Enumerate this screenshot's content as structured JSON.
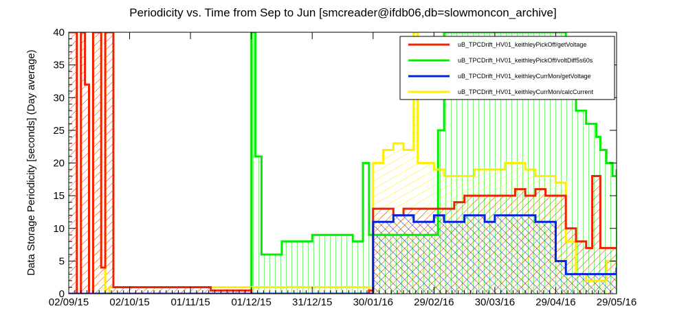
{
  "chart_data": {
    "type": "area",
    "title": "Periodicity vs. Time from Sep to Jun [smcreader@ifdb06,db=slowmoncon_archive]",
    "ylabel": "Data Storage Periodicity [seconds] (Day average)",
    "xlabel": "",
    "ylim": [
      0,
      40
    ],
    "xlim_days": [
      0,
      270
    ],
    "yticks": [
      0,
      5,
      10,
      15,
      20,
      25,
      30,
      35,
      40
    ],
    "xticks": [
      {
        "label": "02/09/15",
        "day": 0
      },
      {
        "label": "02/10/15",
        "day": 30
      },
      {
        "label": "01/11/15",
        "day": 60
      },
      {
        "label": "01/12/15",
        "day": 90
      },
      {
        "label": "31/12/15",
        "day": 120
      },
      {
        "label": "30/01/16",
        "day": 150
      },
      {
        "label": "29/02/16",
        "day": 180
      },
      {
        "label": "30/03/16",
        "day": 210
      },
      {
        "label": "29/04/16",
        "day": 240
      },
      {
        "label": "29/05/16",
        "day": 270
      }
    ],
    "grid": false,
    "legend_position": "top-right",
    "series": [
      {
        "name": "uB_TPCDrift_HV01_keithleyPickOff/getVoltage",
        "color": "#ee2200",
        "x": [
          0,
          2,
          4,
          6,
          8,
          10,
          12,
          14,
          16,
          18,
          20,
          22,
          30,
          50,
          60,
          70,
          80,
          90,
          100,
          120,
          140,
          148,
          150,
          155,
          160,
          165,
          170,
          175,
          180,
          185,
          190,
          195,
          200,
          205,
          210,
          215,
          220,
          225,
          230,
          235,
          240,
          245,
          250,
          255,
          258,
          262,
          265,
          270
        ],
        "y": [
          40,
          40,
          0,
          40,
          32,
          0,
          40,
          40,
          4,
          40,
          40,
          1,
          1,
          1,
          1,
          0.5,
          0.5,
          0,
          0,
          0,
          0,
          0.5,
          13,
          13,
          12,
          13,
          13,
          13,
          13,
          13,
          14,
          15,
          15,
          15,
          15,
          15,
          16,
          15,
          16,
          15,
          15,
          10,
          8,
          7,
          18,
          7,
          7,
          7
        ]
      },
      {
        "name": "uB_TPCDrift_HV01_keithleyPickOff/voltDiff5s60s",
        "color": "#00ee00",
        "x": [
          0,
          20,
          30,
          60,
          80,
          90,
          91,
          92,
          95,
          100,
          105,
          110,
          120,
          130,
          140,
          145,
          148,
          150,
          160,
          170,
          175,
          180,
          182,
          185,
          190,
          195,
          200,
          205,
          210,
          215,
          220,
          225,
          230,
          235,
          240,
          245,
          250,
          255,
          260,
          262,
          265,
          268,
          270
        ],
        "y": [
          0,
          0,
          0,
          0,
          0,
          40,
          40,
          21,
          6,
          6,
          8,
          8,
          9,
          9,
          8,
          20,
          9,
          9,
          9,
          9,
          9,
          9,
          25,
          40,
          40,
          40,
          40,
          40,
          40,
          40,
          40,
          40,
          40,
          40,
          40,
          30,
          28,
          26,
          24,
          22,
          20,
          18,
          19
        ]
      },
      {
        "name": "uB_TPCDrift_HV01_keithleyCurrMon/getVoltage",
        "color": "#0022dd",
        "x": [
          0,
          30,
          60,
          90,
          120,
          140,
          148,
          150,
          155,
          160,
          165,
          170,
          175,
          180,
          185,
          190,
          195,
          200,
          205,
          210,
          215,
          220,
          225,
          230,
          235,
          240,
          245,
          250,
          255,
          260,
          265,
          270
        ],
        "y": [
          0,
          0,
          0,
          0,
          0,
          0,
          0,
          11,
          11,
          12,
          12,
          11,
          11,
          12,
          11,
          11,
          12,
          12,
          11,
          12,
          12,
          12,
          12,
          11,
          11,
          5,
          3,
          3,
          3,
          3,
          3,
          4
        ]
      },
      {
        "name": "uB_TPCDrift_HV01_keithleyCurrMon/calcCurrent",
        "color": "#ffee00",
        "x": [
          0,
          10,
          12,
          16,
          18,
          20,
          30,
          60,
          90,
          120,
          140,
          145,
          148,
          150,
          155,
          160,
          165,
          170,
          172,
          175,
          180,
          185,
          190,
          195,
          200,
          205,
          210,
          215,
          220,
          225,
          230,
          235,
          240,
          245,
          250,
          255,
          260,
          265,
          270
        ],
        "y": [
          0,
          0,
          40,
          40,
          0,
          1,
          1,
          1,
          1,
          1,
          1,
          1,
          0,
          20,
          22,
          23,
          22,
          40,
          20,
          20,
          19,
          18,
          18,
          18,
          19,
          19,
          19,
          20,
          20,
          19,
          18,
          18,
          17,
          8,
          3,
          2,
          2,
          5,
          5
        ]
      }
    ]
  }
}
